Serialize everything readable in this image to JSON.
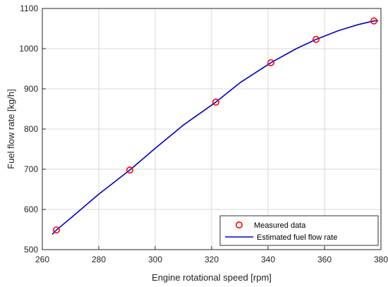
{
  "chart_data": {
    "type": "scatter",
    "title": "",
    "xlabel": "Engine rotational speed [rpm]",
    "ylabel": "Fuel flow rate [kg/h]",
    "xlim": [
      260,
      380
    ],
    "ylim": [
      500,
      1100
    ],
    "xticks": [
      260,
      280,
      300,
      320,
      340,
      360,
      380
    ],
    "yticks": [
      500,
      600,
      700,
      800,
      900,
      1000,
      1100
    ],
    "grid": true,
    "legend_position": "bottom-right",
    "series": [
      {
        "name": "Measured data",
        "kind": "scatter",
        "marker": "circle",
        "color": "#ff0000",
        "x": [
          265,
          291,
          321.5,
          341,
          357,
          377.5
        ],
        "y": [
          549,
          698,
          867,
          965,
          1023,
          1069
        ]
      },
      {
        "name": "Estimated fuel flow rate",
        "kind": "line",
        "color": "#0000cc",
        "x": [
          263.5,
          265,
          270,
          280,
          291,
          300,
          310,
          321.5,
          330,
          341,
          350,
          357,
          365,
          372,
          377.5,
          379
        ],
        "y": [
          538,
          549,
          578,
          638,
          698,
          752,
          810,
          867,
          915,
          965,
          1000,
          1023,
          1045,
          1060,
          1069,
          1070
        ]
      }
    ]
  }
}
